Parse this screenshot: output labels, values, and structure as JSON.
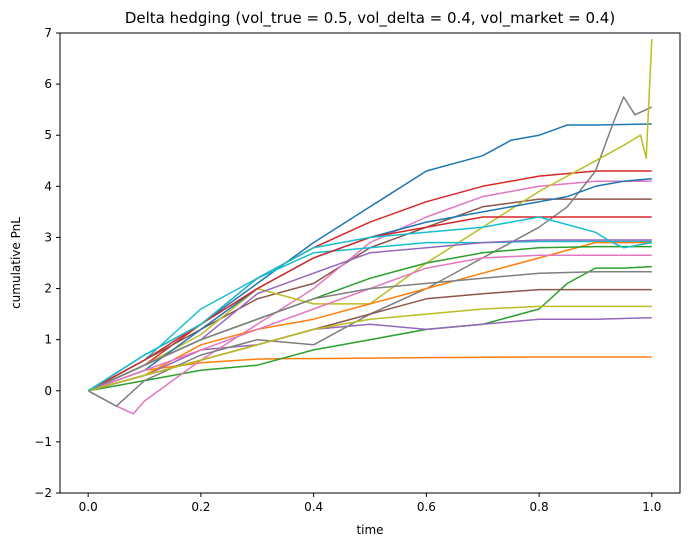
{
  "chart_data": {
    "type": "line",
    "title": "Delta hedging (vol_true = 0.5, vol_delta = 0.4, vol_market = 0.4)",
    "xlabel": "time",
    "ylabel": "cumulative PnL",
    "xlim": [
      -0.05,
      1.05
    ],
    "ylim": [
      -2,
      7
    ],
    "xticks": [
      0.0,
      0.2,
      0.4,
      0.6,
      0.8,
      1.0
    ],
    "xtick_labels": [
      "0.0",
      "0.2",
      "0.4",
      "0.6",
      "0.8",
      "1.0"
    ],
    "yticks": [
      -2,
      -1,
      0,
      1,
      2,
      3,
      4,
      5,
      6,
      7
    ],
    "ytick_labels": [
      "−2",
      "−1",
      "0",
      "1",
      "2",
      "3",
      "4",
      "5",
      "6",
      "7"
    ],
    "grid": false,
    "legend": "none",
    "series": [
      {
        "color": "#1f77b4",
        "x": [
          0,
          0.1,
          0.2,
          0.3,
          0.4,
          0.5,
          0.6,
          0.7,
          0.75,
          0.8,
          0.85,
          0.9,
          1.0
        ],
        "values": [
          0,
          0.7,
          1.3,
          2.1,
          2.9,
          3.6,
          4.3,
          4.6,
          4.9,
          5.0,
          5.2,
          5.2,
          5.22
        ]
      },
      {
        "color": "#ff7f0e",
        "x": [
          0,
          0.1,
          0.2,
          0.3,
          0.35,
          0.4,
          0.5,
          0.6,
          0.8,
          1.0
        ],
        "values": [
          0,
          0.4,
          0.55,
          0.62,
          0.63,
          0.63,
          0.64,
          0.65,
          0.66,
          0.66
        ]
      },
      {
        "color": "#2ca02c",
        "x": [
          0,
          0.1,
          0.2,
          0.3,
          0.4,
          0.5,
          0.6,
          0.7,
          0.8,
          0.85,
          0.9,
          0.95,
          1.0
        ],
        "values": [
          0,
          0.2,
          0.4,
          0.5,
          0.8,
          1.0,
          1.2,
          1.3,
          1.6,
          2.1,
          2.4,
          2.4,
          2.43
        ]
      },
      {
        "color": "#d62728",
        "x": [
          0,
          0.1,
          0.2,
          0.3,
          0.4,
          0.5,
          0.6,
          0.7,
          0.8,
          0.9,
          1.0
        ],
        "values": [
          0,
          0.5,
          1.3,
          2.2,
          2.8,
          3.3,
          3.7,
          4.0,
          4.2,
          4.3,
          4.3
        ]
      },
      {
        "color": "#9467bd",
        "x": [
          0,
          0.1,
          0.2,
          0.3,
          0.4,
          0.5,
          0.6,
          0.7,
          0.8,
          0.9,
          1.0
        ],
        "values": [
          0,
          0.3,
          0.8,
          0.9,
          1.2,
          1.3,
          1.2,
          1.3,
          1.4,
          1.4,
          1.43
        ]
      },
      {
        "color": "#8c564b",
        "x": [
          0,
          0.1,
          0.2,
          0.3,
          0.4,
          0.5,
          0.6,
          0.7,
          0.8,
          0.9,
          1.0
        ],
        "values": [
          0,
          0.6,
          1.2,
          1.8,
          2.1,
          2.8,
          3.2,
          3.6,
          3.75,
          3.75,
          3.75
        ]
      },
      {
        "color": "#e377c2",
        "x": [
          0,
          0.05,
          0.08,
          0.1,
          0.2,
          0.3,
          0.4,
          0.5,
          0.6,
          0.7,
          0.8,
          0.9,
          1.0
        ],
        "values": [
          0,
          -0.3,
          -0.45,
          -0.2,
          0.6,
          1.3,
          2.0,
          2.9,
          3.4,
          3.8,
          4.0,
          4.1,
          4.1
        ]
      },
      {
        "color": "#7f7f7f",
        "x": [
          0,
          0.05,
          0.1,
          0.2,
          0.3,
          0.4,
          0.5,
          0.6,
          0.7,
          0.8,
          0.85,
          0.9,
          0.93,
          0.95,
          0.97,
          1.0
        ],
        "values": [
          0,
          -0.3,
          0.2,
          0.7,
          1.0,
          0.9,
          1.5,
          2.0,
          2.6,
          3.2,
          3.6,
          4.3,
          5.2,
          5.75,
          5.4,
          5.55
        ]
      },
      {
        "color": "#bcbd22",
        "x": [
          0,
          0.1,
          0.2,
          0.3,
          0.4,
          0.5,
          0.6,
          0.7,
          0.8,
          0.85,
          0.9,
          0.95,
          0.98,
          0.99,
          1.0
        ],
        "values": [
          0,
          0.5,
          1.1,
          2.0,
          1.7,
          1.7,
          2.5,
          3.2,
          3.9,
          4.2,
          4.5,
          4.8,
          5.0,
          4.55,
          6.88
        ]
      },
      {
        "color": "#17becf",
        "x": [
          0,
          0.1,
          0.2,
          0.3,
          0.4,
          0.5,
          0.6,
          0.7,
          0.8,
          0.9,
          1.0
        ],
        "values": [
          0,
          0.6,
          1.6,
          2.2,
          2.7,
          2.8,
          2.9,
          2.9,
          2.92,
          2.92,
          2.92
        ]
      },
      {
        "color": "#1f77b4",
        "x": [
          0,
          0.1,
          0.2,
          0.3,
          0.4,
          0.5,
          0.6,
          0.7,
          0.8,
          0.85,
          0.9,
          0.95,
          1.0
        ],
        "values": [
          0,
          0.4,
          1.2,
          2.0,
          2.6,
          3.0,
          3.3,
          3.5,
          3.7,
          3.8,
          4.0,
          4.1,
          4.15
        ]
      },
      {
        "color": "#ff7f0e",
        "x": [
          0,
          0.1,
          0.2,
          0.3,
          0.4,
          0.5,
          0.6,
          0.7,
          0.8,
          0.9,
          1.0
        ],
        "values": [
          0,
          0.3,
          0.9,
          1.2,
          1.4,
          1.7,
          2.0,
          2.3,
          2.6,
          2.9,
          2.9
        ]
      },
      {
        "color": "#2ca02c",
        "x": [
          0,
          0.1,
          0.2,
          0.3,
          0.4,
          0.5,
          0.6,
          0.7,
          0.8,
          0.9,
          1.0
        ],
        "values": [
          0,
          0.5,
          1.0,
          1.4,
          1.8,
          2.2,
          2.5,
          2.7,
          2.8,
          2.82,
          2.82
        ]
      },
      {
        "color": "#d62728",
        "x": [
          0,
          0.1,
          0.2,
          0.3,
          0.4,
          0.5,
          0.6,
          0.7,
          0.8,
          0.9,
          1.0
        ],
        "values": [
          0,
          0.6,
          1.3,
          2.0,
          2.6,
          3.0,
          3.2,
          3.4,
          3.4,
          3.4,
          3.4
        ]
      },
      {
        "color": "#9467bd",
        "x": [
          0,
          0.1,
          0.2,
          0.3,
          0.4,
          0.5,
          0.6,
          0.7,
          0.8,
          0.9,
          1.0
        ],
        "values": [
          0,
          0.5,
          1.0,
          1.9,
          2.3,
          2.7,
          2.8,
          2.9,
          2.95,
          2.95,
          2.95
        ]
      },
      {
        "color": "#8c564b",
        "x": [
          0,
          0.1,
          0.2,
          0.3,
          0.4,
          0.5,
          0.6,
          0.7,
          0.8,
          0.9,
          1.0
        ],
        "values": [
          0,
          0.3,
          0.6,
          0.9,
          1.2,
          1.5,
          1.8,
          1.9,
          1.98,
          1.98,
          1.98
        ]
      },
      {
        "color": "#e377c2",
        "x": [
          0,
          0.1,
          0.2,
          0.3,
          0.4,
          0.5,
          0.6,
          0.7,
          0.8,
          0.9,
          1.0
        ],
        "values": [
          0,
          0.4,
          0.8,
          1.2,
          1.6,
          2.0,
          2.4,
          2.6,
          2.65,
          2.65,
          2.65
        ]
      },
      {
        "color": "#7f7f7f",
        "x": [
          0,
          0.1,
          0.2,
          0.3,
          0.4,
          0.5,
          0.6,
          0.7,
          0.8,
          0.9,
          1.0
        ],
        "values": [
          0,
          0.5,
          1.0,
          1.4,
          1.8,
          2.0,
          2.1,
          2.2,
          2.3,
          2.33,
          2.33
        ]
      },
      {
        "color": "#bcbd22",
        "x": [
          0,
          0.1,
          0.2,
          0.3,
          0.4,
          0.5,
          0.6,
          0.7,
          0.8,
          0.9,
          1.0
        ],
        "values": [
          0,
          0.3,
          0.6,
          0.9,
          1.2,
          1.4,
          1.5,
          1.6,
          1.65,
          1.65,
          1.65
        ]
      },
      {
        "color": "#17becf",
        "x": [
          0,
          0.1,
          0.2,
          0.3,
          0.4,
          0.5,
          0.6,
          0.7,
          0.8,
          0.9,
          0.93,
          0.95,
          1.0
        ],
        "values": [
          0,
          0.7,
          1.3,
          2.2,
          2.8,
          3.0,
          3.1,
          3.2,
          3.4,
          3.1,
          2.9,
          2.8,
          2.9
        ]
      }
    ]
  }
}
